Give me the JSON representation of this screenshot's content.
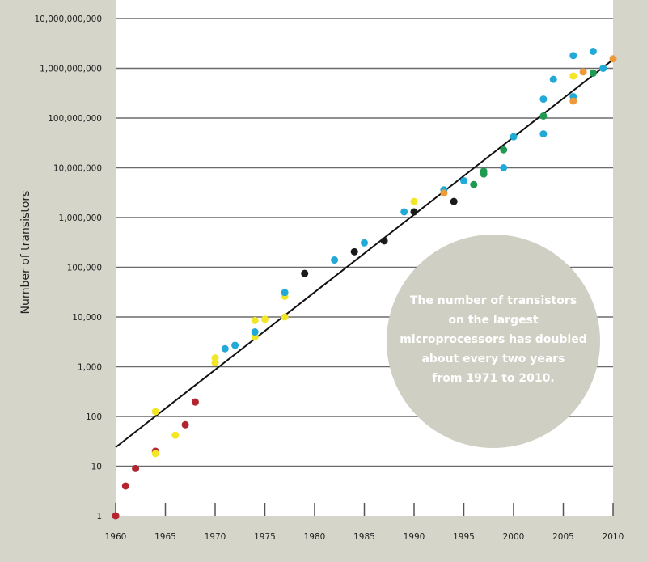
{
  "chart_data": {
    "type": "scatter",
    "title": "",
    "xlabel": "",
    "ylabel": "Number of transistors",
    "xlim": [
      1960,
      2010
    ],
    "ylim": [
      1,
      10000000000
    ],
    "yscale": "log",
    "grid": "horizontal",
    "x_ticks": [
      "1960",
      "1965",
      "1970",
      "1975",
      "1980",
      "1985",
      "1990",
      "1995",
      "2000",
      "2005",
      "2010"
    ],
    "y_ticks": [
      "1",
      "10",
      "100",
      "1,000",
      "10,000",
      "100,000",
      "1,000,000",
      "10,000,000",
      "100,000,000",
      "1,000,000,000",
      "10,000,000,000"
    ],
    "annotation": [
      "The number of transistors",
      "on the largest",
      "microprocessors has doubled",
      "about every two years",
      "from 1971 to 2010."
    ],
    "trend_line": {
      "x": [
        1960,
        2010
      ],
      "y": [
        24,
        1500000000
      ]
    },
    "colors": {
      "red": "#b3242f",
      "yellow": "#f2e626",
      "blue": "#21a9d8",
      "green": "#1f9a50",
      "orange": "#ef9a3a",
      "black": "#1a1a1a",
      "background": "#d5d5c9",
      "plot": "#ffffff",
      "circle": "#cfcfc3"
    },
    "points": [
      {
        "x": 1960,
        "y": 1,
        "c": "red"
      },
      {
        "x": 1961,
        "y": 4,
        "c": "red"
      },
      {
        "x": 1962,
        "y": 9,
        "c": "red"
      },
      {
        "x": 1964,
        "y": 20,
        "c": "red"
      },
      {
        "x": 1967,
        "y": 68,
        "c": "red"
      },
      {
        "x": 1968,
        "y": 195,
        "c": "red"
      },
      {
        "x": 1964,
        "y": 125,
        "c": "yellow"
      },
      {
        "x": 1964,
        "y": 18,
        "c": "yellow"
      },
      {
        "x": 1966,
        "y": 42,
        "c": "yellow"
      },
      {
        "x": 1970,
        "y": 1500,
        "c": "yellow"
      },
      {
        "x": 1970,
        "y": 1200,
        "c": "yellow"
      },
      {
        "x": 1974,
        "y": 8500,
        "c": "yellow"
      },
      {
        "x": 1975,
        "y": 9000,
        "c": "yellow"
      },
      {
        "x": 1977,
        "y": 10000,
        "c": "yellow"
      },
      {
        "x": 1974,
        "y": 4000,
        "c": "yellow"
      },
      {
        "x": 1977,
        "y": 26000,
        "c": "yellow"
      },
      {
        "x": 1990,
        "y": 2100000,
        "c": "yellow"
      },
      {
        "x": 2006,
        "y": 700000000,
        "c": "yellow"
      },
      {
        "x": 1971,
        "y": 2300,
        "c": "blue"
      },
      {
        "x": 1972,
        "y": 2700,
        "c": "blue"
      },
      {
        "x": 1974,
        "y": 5000,
        "c": "blue"
      },
      {
        "x": 1977,
        "y": 31000,
        "c": "blue"
      },
      {
        "x": 1982,
        "y": 140000,
        "c": "blue"
      },
      {
        "x": 1985,
        "y": 310000,
        "c": "blue"
      },
      {
        "x": 1989,
        "y": 1300000,
        "c": "blue"
      },
      {
        "x": 1993,
        "y": 3600000,
        "c": "blue"
      },
      {
        "x": 1995,
        "y": 5500000,
        "c": "blue"
      },
      {
        "x": 1999,
        "y": 10000000,
        "c": "blue"
      },
      {
        "x": 2000,
        "y": 42000000,
        "c": "blue"
      },
      {
        "x": 2003,
        "y": 48000000,
        "c": "blue"
      },
      {
        "x": 2003,
        "y": 240000000,
        "c": "blue"
      },
      {
        "x": 2004,
        "y": 600000000,
        "c": "blue"
      },
      {
        "x": 2006,
        "y": 270000000,
        "c": "blue"
      },
      {
        "x": 2006,
        "y": 1800000000,
        "c": "blue"
      },
      {
        "x": 2008,
        "y": 2200000000,
        "c": "blue"
      },
      {
        "x": 2009,
        "y": 1000000000,
        "c": "blue"
      },
      {
        "x": 1996,
        "y": 4600000,
        "c": "green"
      },
      {
        "x": 1997,
        "y": 8500000,
        "c": "green"
      },
      {
        "x": 1997,
        "y": 7500000,
        "c": "green"
      },
      {
        "x": 1999,
        "y": 23000000,
        "c": "green"
      },
      {
        "x": 2003,
        "y": 110000000,
        "c": "green"
      },
      {
        "x": 2008,
        "y": 800000000,
        "c": "green"
      },
      {
        "x": 1993,
        "y": 3100000,
        "c": "orange"
      },
      {
        "x": 2006,
        "y": 220000000,
        "c": "orange"
      },
      {
        "x": 2007,
        "y": 850000000,
        "c": "orange"
      },
      {
        "x": 2010,
        "y": 1550000000,
        "c": "orange"
      },
      {
        "x": 1979,
        "y": 75000,
        "c": "black"
      },
      {
        "x": 1984,
        "y": 205000,
        "c": "black"
      },
      {
        "x": 1987,
        "y": 340000,
        "c": "black"
      },
      {
        "x": 1990,
        "y": 1300000,
        "c": "black"
      },
      {
        "x": 1994,
        "y": 2100000,
        "c": "black"
      }
    ]
  }
}
